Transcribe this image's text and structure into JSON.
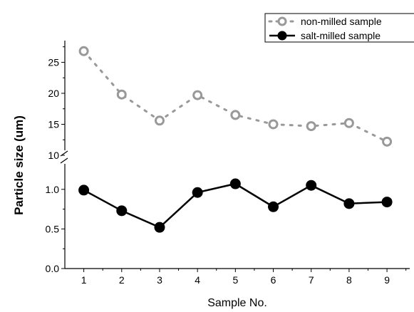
{
  "chart_data": {
    "type": "line",
    "title": "",
    "xlabel": "Sample No.",
    "ylabel": "Particle size (um)",
    "x": [
      1,
      2,
      3,
      4,
      5,
      6,
      7,
      8,
      9
    ],
    "xlim": [
      0.5,
      9.6
    ],
    "y_axis_break": true,
    "y_segments": [
      {
        "range": [
          0.0,
          1.25
        ],
        "ticks": [
          0.0,
          0.5,
          1.0
        ],
        "tick_labels": [
          "0.0",
          "0.5",
          "1.0"
        ]
      },
      {
        "range": [
          10,
          28.5
        ],
        "ticks": [
          10,
          15,
          20,
          25
        ],
        "tick_labels": [
          "10",
          "15",
          "20",
          "25"
        ]
      }
    ],
    "x_tick_labels": [
      "1",
      "2",
      "3",
      "4",
      "5",
      "6",
      "7",
      "8",
      "9"
    ],
    "legend_position": "top-right",
    "series": [
      {
        "name": "non-milled sample",
        "values": [
          26.8,
          19.8,
          15.6,
          19.7,
          16.5,
          15.0,
          14.7,
          15.2,
          12.2
        ],
        "color": "#999999",
        "marker": "open-circle",
        "line": "dotted"
      },
      {
        "name": "salt-milled sample",
        "values": [
          0.99,
          0.73,
          0.52,
          0.96,
          1.07,
          0.78,
          1.05,
          0.82,
          0.84
        ],
        "color": "#000000",
        "marker": "filled-circle",
        "line": "solid"
      }
    ]
  }
}
